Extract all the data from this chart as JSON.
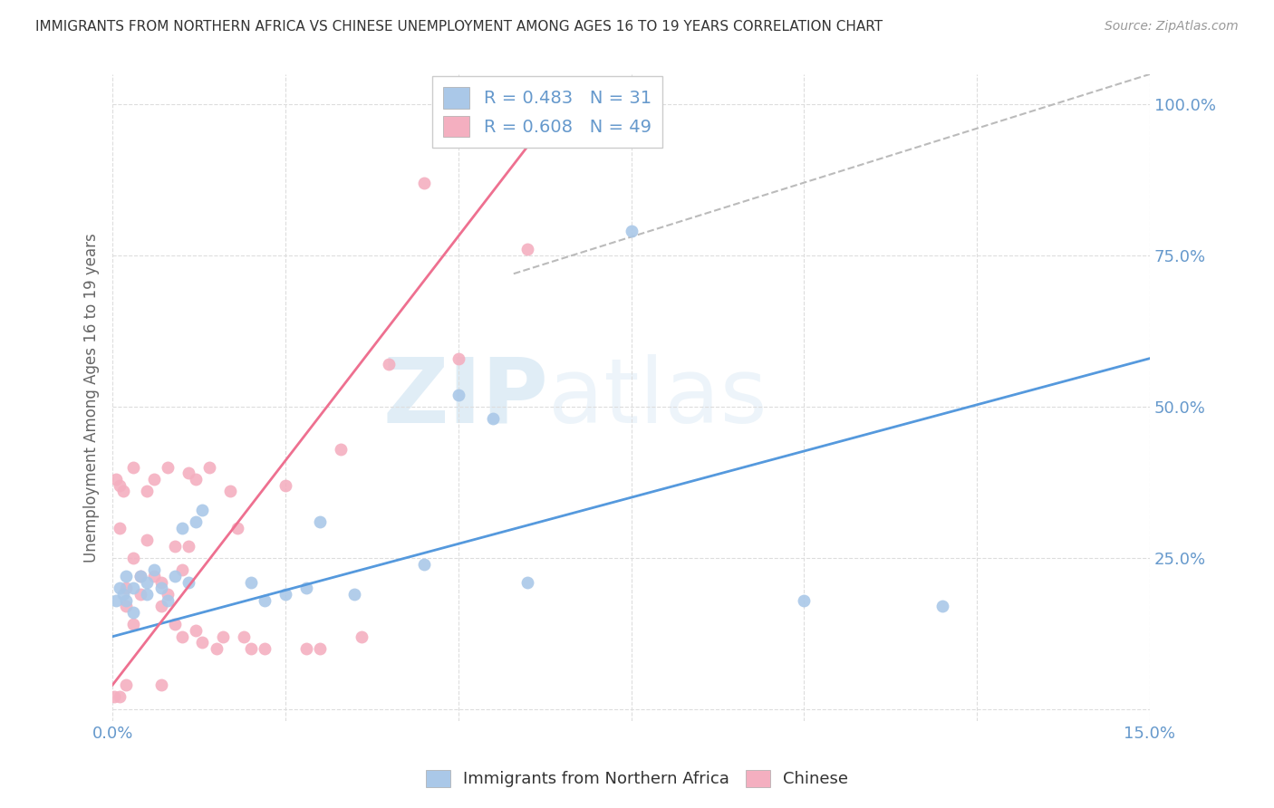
{
  "title": "IMMIGRANTS FROM NORTHERN AFRICA VS CHINESE UNEMPLOYMENT AMONG AGES 16 TO 19 YEARS CORRELATION CHART",
  "source": "Source: ZipAtlas.com",
  "ylabel": "Unemployment Among Ages 16 to 19 years",
  "xlim": [
    0.0,
    0.15
  ],
  "ylim": [
    -0.02,
    1.05
  ],
  "blue_R": 0.483,
  "blue_N": 31,
  "pink_R": 0.608,
  "pink_N": 49,
  "blue_color": "#aac8e8",
  "pink_color": "#f4afc0",
  "blue_line_color": "#5599dd",
  "pink_line_color": "#ee7090",
  "dash_line_color": "#bbbbbb",
  "background_color": "#ffffff",
  "grid_color": "#dddddd",
  "tick_label_color": "#6699cc",
  "watermark": "ZIPatlas",
  "figsize": [
    14.06,
    8.92
  ],
  "dpi": 100,
  "blue_scatter_x": [
    0.0005,
    0.001,
    0.0015,
    0.002,
    0.002,
    0.003,
    0.003,
    0.004,
    0.005,
    0.005,
    0.006,
    0.007,
    0.008,
    0.009,
    0.01,
    0.011,
    0.012,
    0.013,
    0.02,
    0.022,
    0.025,
    0.028,
    0.03,
    0.035,
    0.045,
    0.05,
    0.055,
    0.06,
    0.075,
    0.1,
    0.12
  ],
  "blue_scatter_y": [
    0.18,
    0.2,
    0.19,
    0.22,
    0.18,
    0.2,
    0.16,
    0.22,
    0.21,
    0.19,
    0.23,
    0.2,
    0.18,
    0.22,
    0.3,
    0.21,
    0.31,
    0.33,
    0.21,
    0.18,
    0.19,
    0.2,
    0.31,
    0.19,
    0.24,
    0.52,
    0.48,
    0.21,
    0.79,
    0.18,
    0.17
  ],
  "pink_scatter_x": [
    0.0002,
    0.0005,
    0.001,
    0.001,
    0.001,
    0.0015,
    0.002,
    0.002,
    0.002,
    0.003,
    0.003,
    0.003,
    0.004,
    0.004,
    0.005,
    0.005,
    0.006,
    0.006,
    0.007,
    0.007,
    0.007,
    0.008,
    0.008,
    0.009,
    0.009,
    0.01,
    0.01,
    0.011,
    0.011,
    0.012,
    0.012,
    0.013,
    0.014,
    0.015,
    0.016,
    0.017,
    0.018,
    0.019,
    0.02,
    0.022,
    0.025,
    0.028,
    0.03,
    0.033,
    0.036,
    0.04,
    0.045,
    0.05,
    0.06
  ],
  "pink_scatter_y": [
    0.02,
    0.38,
    0.37,
    0.3,
    0.02,
    0.36,
    0.2,
    0.17,
    0.04,
    0.4,
    0.25,
    0.14,
    0.22,
    0.19,
    0.36,
    0.28,
    0.38,
    0.22,
    0.21,
    0.17,
    0.04,
    0.4,
    0.19,
    0.27,
    0.14,
    0.23,
    0.12,
    0.39,
    0.27,
    0.38,
    0.13,
    0.11,
    0.4,
    0.1,
    0.12,
    0.36,
    0.3,
    0.12,
    0.1,
    0.1,
    0.37,
    0.1,
    0.1,
    0.43,
    0.12,
    0.57,
    0.87,
    0.58,
    0.76
  ],
  "blue_line_x": [
    0.0,
    0.15
  ],
  "blue_line_y": [
    0.12,
    0.58
  ],
  "pink_line_x": [
    0.0,
    0.062
  ],
  "pink_line_y": [
    0.04,
    0.96
  ],
  "dash_line_x": [
    0.058,
    0.15
  ],
  "dash_line_y": [
    0.72,
    1.05
  ]
}
